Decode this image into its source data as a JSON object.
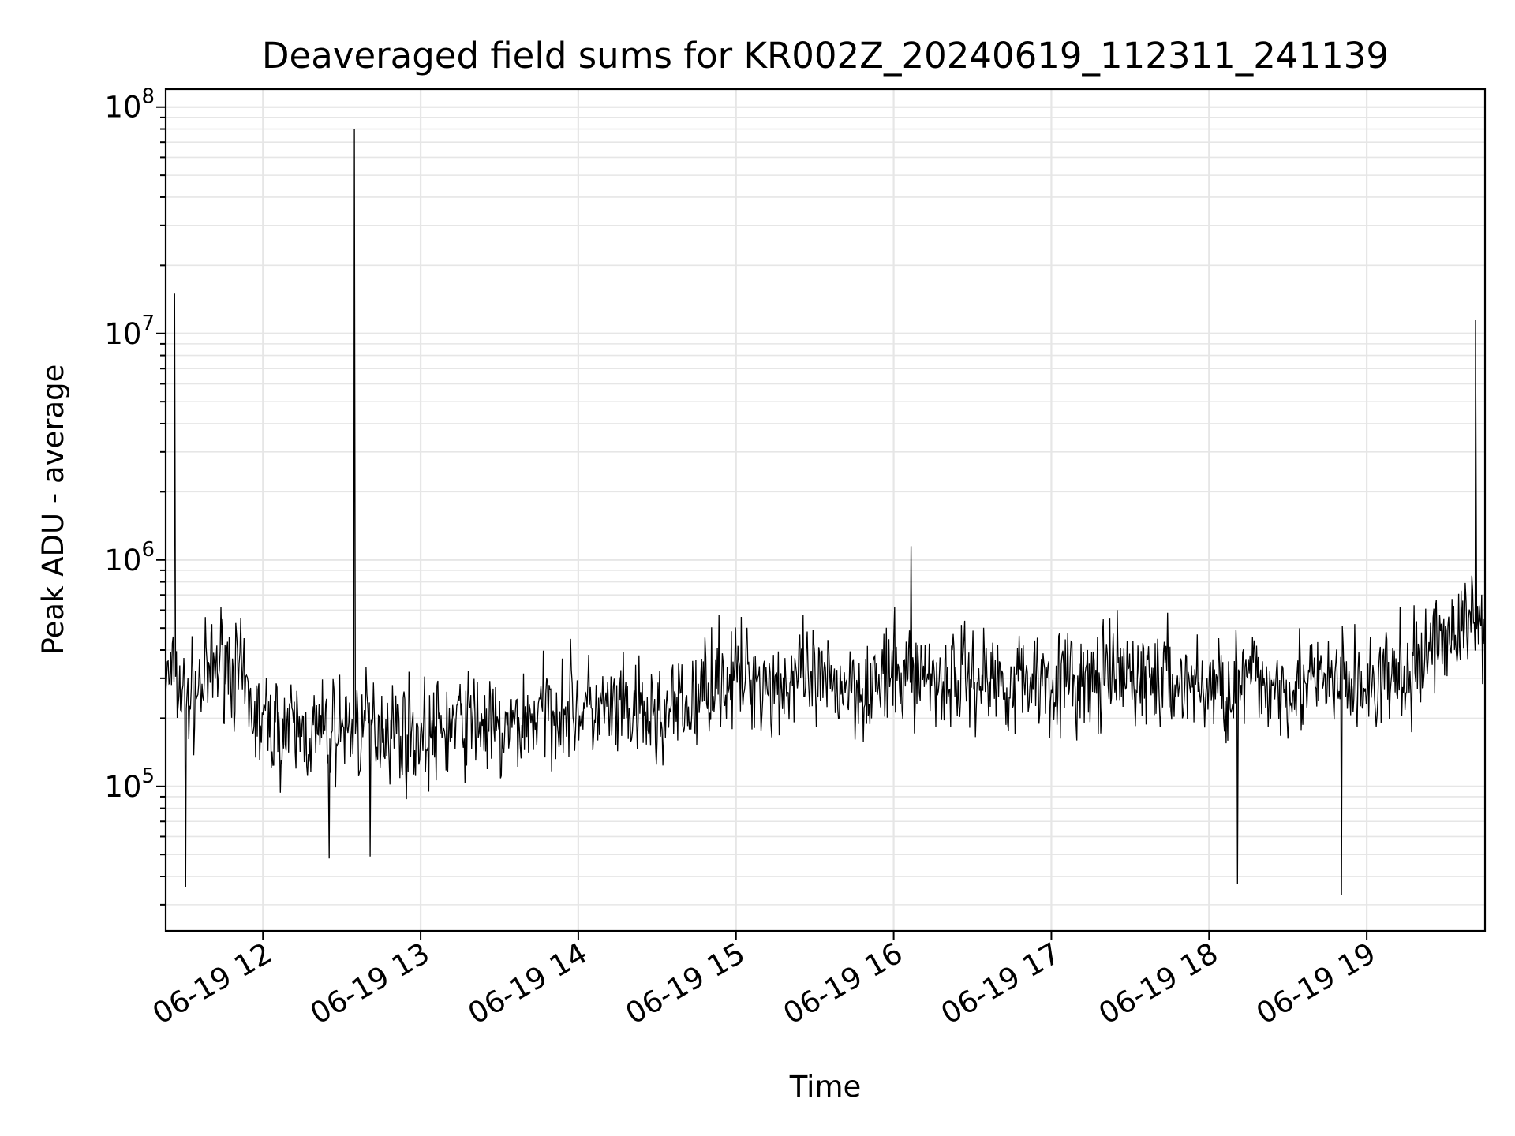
{
  "chart_data": {
    "type": "line",
    "title": "Deaveraged field sums for KR002Z_20240619_112311_241139",
    "xlabel": "Time",
    "ylabel": "Peak ADU - average",
    "x_range": [
      "2024-06-19 11:23",
      "2024-06-19 19:45"
    ],
    "ylim": [
      23000,
      120000000
    ],
    "yscale": "log",
    "grid": "major and minor",
    "x_ticks": [
      "06-19 12",
      "06-19 13",
      "06-19 14",
      "06-19 15",
      "06-19 16",
      "06-19 17",
      "06-19 18",
      "06-19 19"
    ],
    "y_ticks": [
      {
        "base": "10",
        "exp": "5",
        "value": 100000
      },
      {
        "base": "10",
        "exp": "6",
        "value": 1000000
      },
      {
        "base": "10",
        "exp": "7",
        "value": 10000000
      },
      {
        "base": "10",
        "exp": "8",
        "value": 100000000
      }
    ],
    "series": [
      {
        "color": "#000000",
        "x_unit": "time of day (decimal hours, 2024-06-19)",
        "x": [
          11.39,
          11.45,
          11.55,
          11.65,
          11.75,
          11.85,
          11.95,
          12.05,
          12.2,
          12.35,
          12.5,
          12.6,
          12.75,
          12.9,
          13.05,
          13.2,
          13.35,
          13.5,
          13.6,
          13.75,
          13.9,
          14.05,
          14.2,
          14.35,
          14.5,
          14.6,
          14.75,
          14.85,
          14.95,
          15.1,
          15.25,
          15.4,
          15.55,
          15.7,
          15.85,
          16.0,
          16.15,
          16.3,
          16.45,
          16.6,
          16.75,
          16.9,
          17.05,
          17.2,
          17.35,
          17.5,
          17.65,
          17.8,
          17.95,
          18.1,
          18.25,
          18.4,
          18.55,
          18.7,
          18.85,
          19.0,
          19.15,
          19.3,
          19.45,
          19.6,
          19.73
        ],
        "y": [
          300000,
          280000,
          250000,
          300000,
          380000,
          300000,
          200000,
          185000,
          175000,
          170000,
          185000,
          180000,
          190000,
          175000,
          165000,
          185000,
          200000,
          165000,
          185000,
          210000,
          230000,
          220000,
          210000,
          205000,
          200000,
          215000,
          230000,
          320000,
          300000,
          310000,
          280000,
          300000,
          270000,
          290000,
          280000,
          300000,
          320000,
          300000,
          310000,
          300000,
          290000,
          310000,
          300000,
          280000,
          300000,
          310000,
          300000,
          290000,
          280000,
          270000,
          300000,
          280000,
          290000,
          280000,
          290000,
          270000,
          300000,
          310000,
          460000,
          500000,
          560000
        ],
        "spikes_up": [
          {
            "x": 11.44,
            "y": 15000000
          },
          {
            "x": 12.58,
            "y": 80000000
          },
          {
            "x": 16.11,
            "y": 1150000
          },
          {
            "x": 19.69,
            "y": 11500000
          }
        ],
        "spikes_down": [
          {
            "x": 11.51,
            "y": 36000
          },
          {
            "x": 12.42,
            "y": 48000
          },
          {
            "x": 12.68,
            "y": 49000
          },
          {
            "x": 18.18,
            "y": 37000
          },
          {
            "x": 18.84,
            "y": 33000
          }
        ],
        "noise_band": {
          "low_factor": 0.45,
          "high_factor": 2.2,
          "points": 1600,
          "seed": 7
        }
      }
    ]
  }
}
